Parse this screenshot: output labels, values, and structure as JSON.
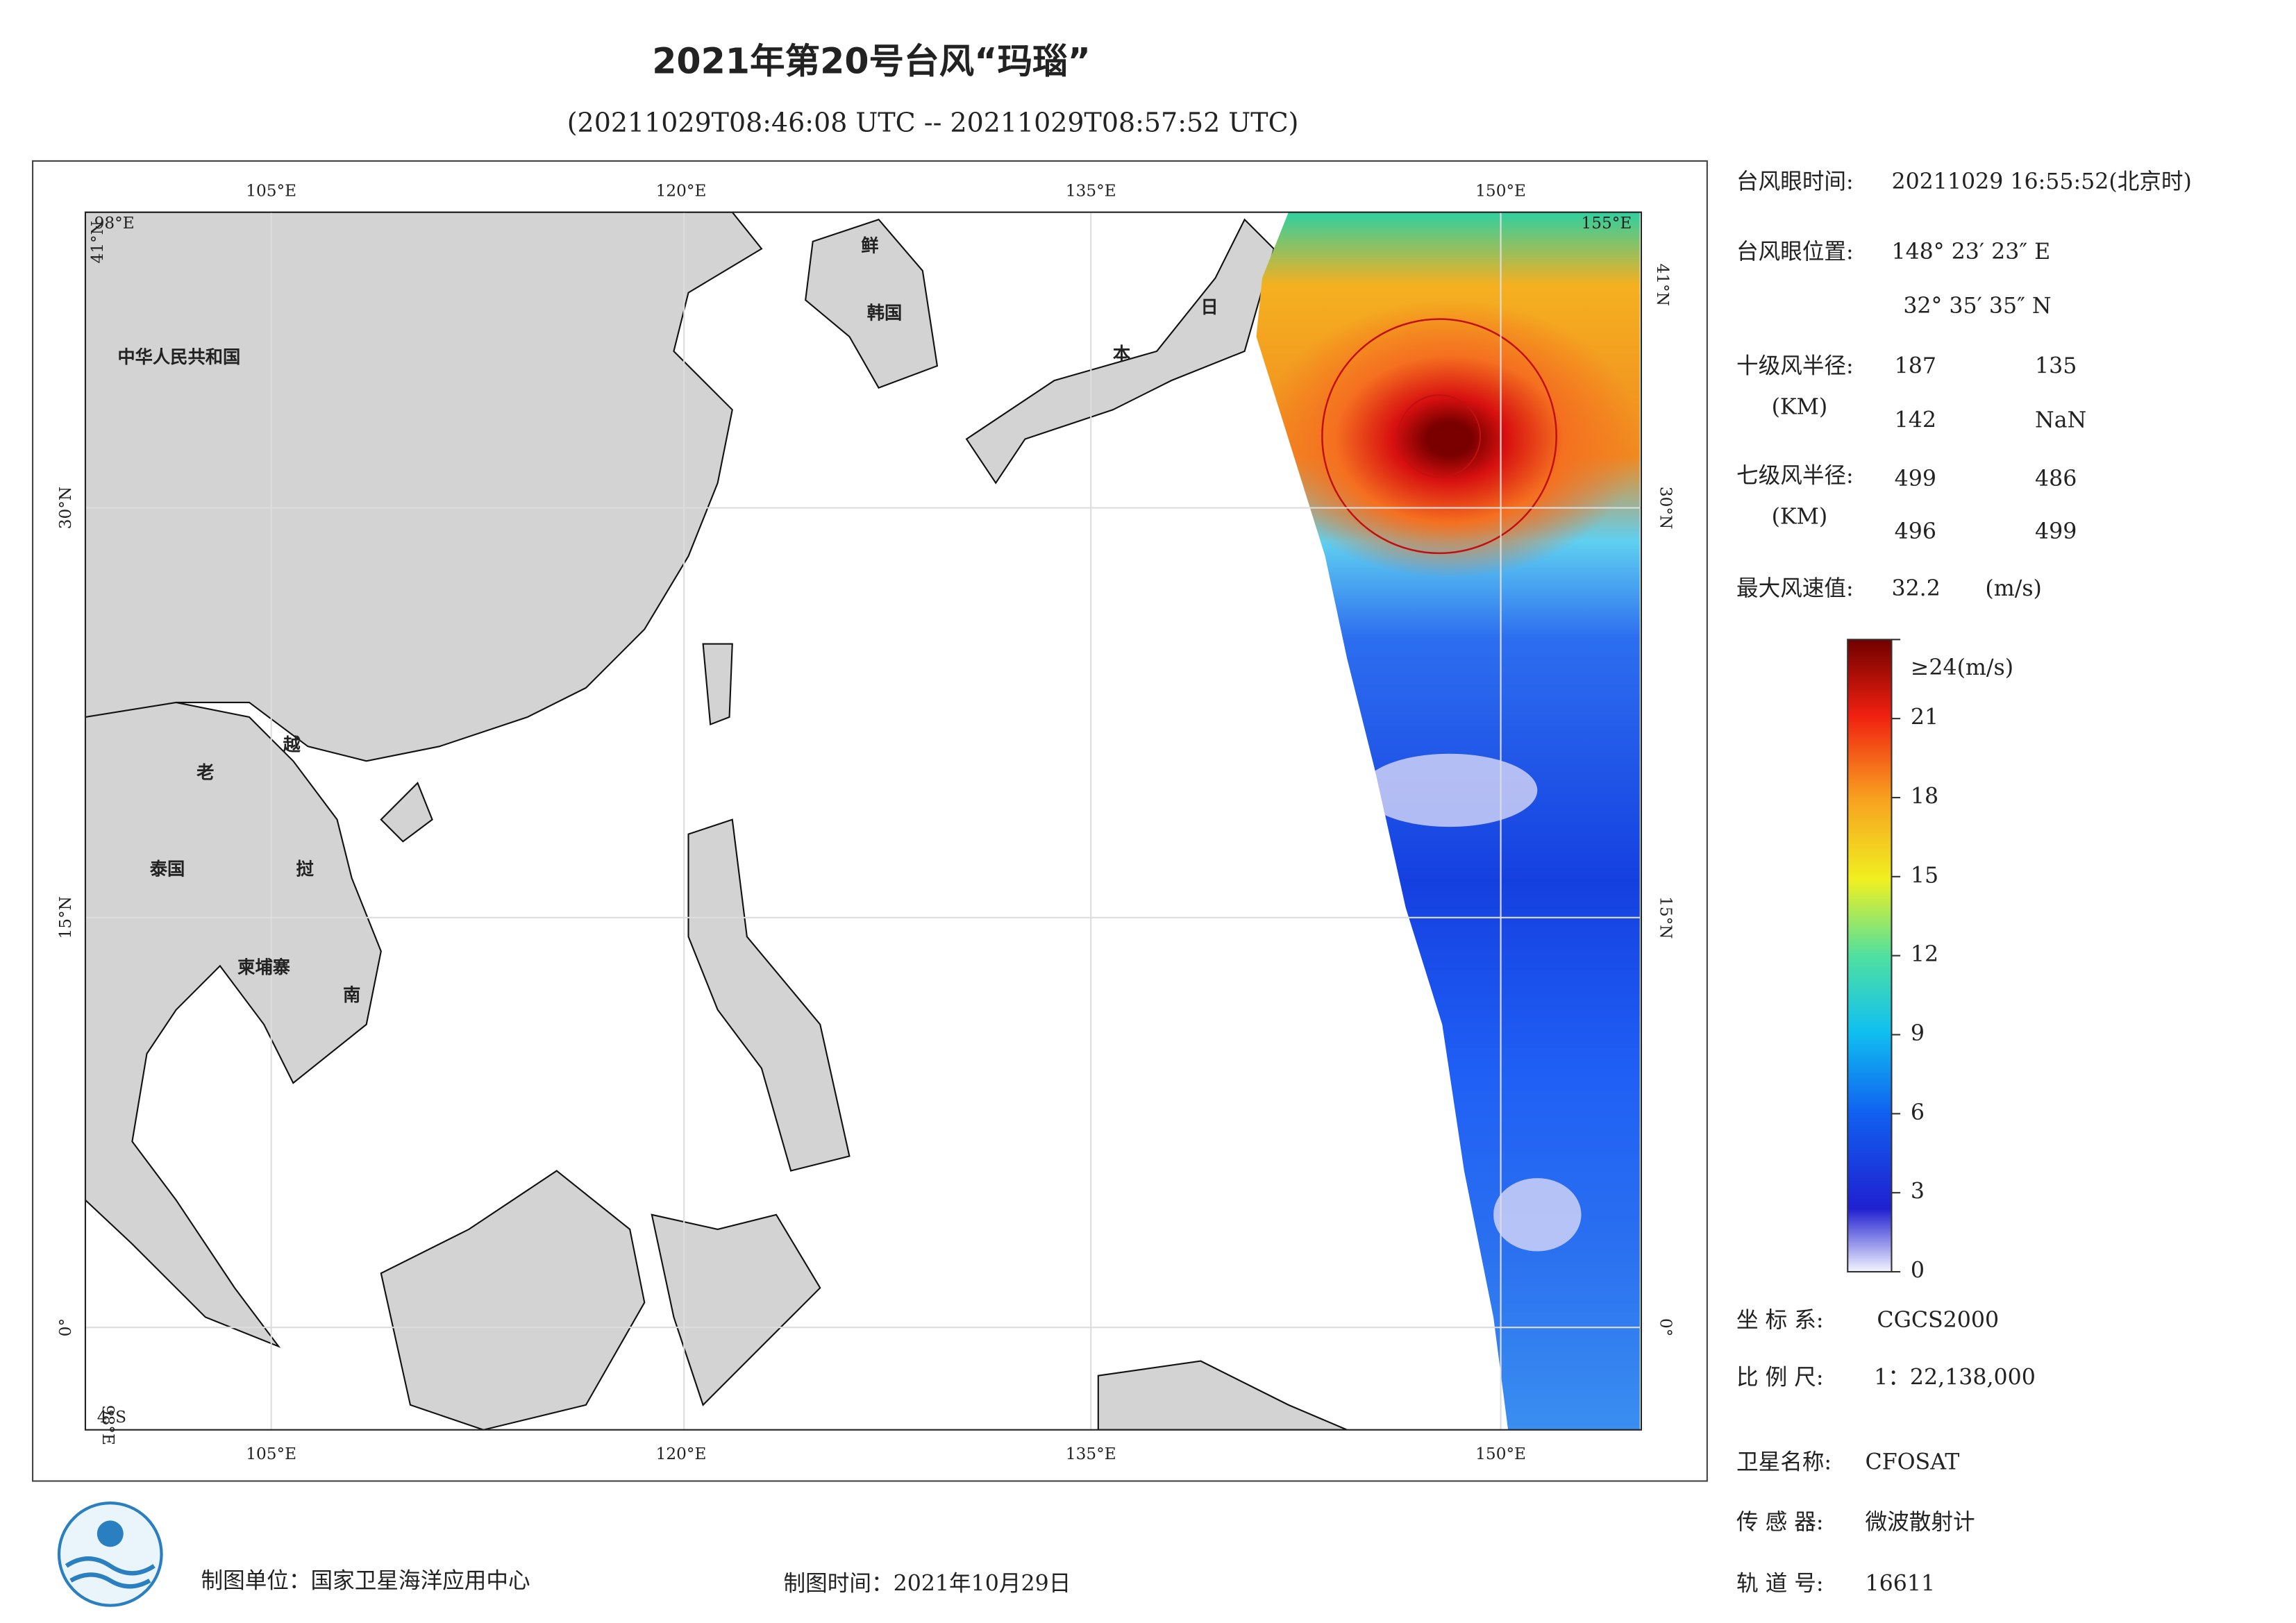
{
  "header": {
    "title": "2021年第20号台风“玛瑙”",
    "subtitle": "(20211029T08:46:08 UTC -- 20211029T08:57:52 UTC)"
  },
  "map": {
    "lon_labels": [
      "105°E",
      "120°E",
      "135°E",
      "150°E"
    ],
    "lat_labels": [
      "30°N",
      "15°N",
      "0°"
    ],
    "corner_labels": {
      "top_left_lon": "98°E",
      "top_left_lat": "41°N",
      "top_right_lon": "155°E",
      "top_right_lat": "41°N",
      "bottom_left_lat": "4°S",
      "bottom_left_lon": "98°E"
    },
    "place_labels": [
      "中华人民共和国",
      "鲜",
      "韩国",
      "日",
      "本",
      "老",
      "越",
      "泰国",
      "挝",
      "柬埔寨",
      "南"
    ]
  },
  "info": {
    "eye_time_label": "台风眼时间:",
    "eye_time": "20211029 16:55:52(北京时)",
    "eye_pos_label": "台风眼位置:",
    "eye_lon": "148° 23′ 23″ E",
    "eye_lat": "32° 35′ 35″ N",
    "r10_label": "十级风半径:",
    "r10_unit": "(KM)",
    "r10": [
      187,
      135,
      142,
      "NaN"
    ],
    "r7_label": "七级风半径:",
    "r7_unit": "(KM)",
    "r7": [
      499,
      486,
      496,
      499
    ],
    "max_wind_label": "最大风速值:",
    "max_wind": 32.2,
    "max_wind_unit": "(m/s)",
    "crs_label": "坐 标 系:",
    "crs": "CGCS2000",
    "scale_label": "比 例 尺:",
    "scale": "1：22,138,000",
    "sat_label": "卫星名称:",
    "sat": "CFOSAT",
    "sensor_label": "传 感 器:",
    "sensor": "微波散射计",
    "orbit_label": "轨 道 号:",
    "orbit": 16611
  },
  "colorbar": {
    "lim": [
      0,
      24
    ],
    "ticks": [
      0,
      3,
      6,
      9,
      12,
      15,
      18,
      21,
      {
        "value": 24,
        "label": "≥24(m/s)"
      }
    ]
  },
  "footer": {
    "unit": "制图单位：国家卫星海洋应用中心",
    "date": "制图时间：2021年10月29日"
  }
}
